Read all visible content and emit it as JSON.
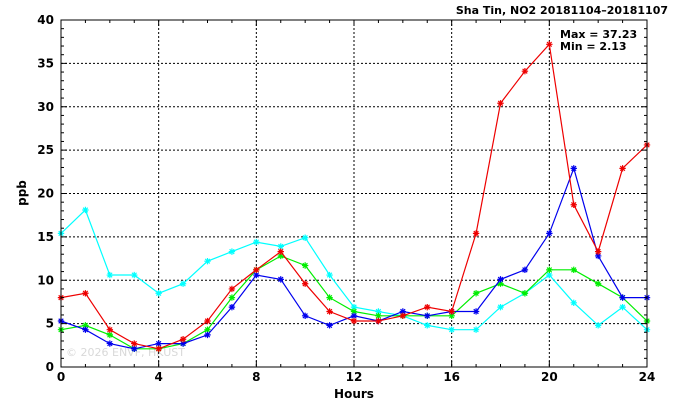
{
  "chart_data": {
    "type": "line",
    "title": "Sha Tin, NO2 20181104–20181107",
    "xlabel": "Hours",
    "ylabel": "ppb",
    "xlim": [
      0,
      24
    ],
    "ylim": [
      0,
      40
    ],
    "x_ticks": [
      0,
      4,
      8,
      12,
      16,
      20,
      24
    ],
    "y_ticks": [
      0,
      5,
      10,
      15,
      20,
      25,
      30,
      35,
      40
    ],
    "grid": true,
    "max_label": "Max = 37.23",
    "min_label": "Min =  2.13",
    "watermark": "© 2026 ENVF, HKUST",
    "x": [
      0,
      1,
      2,
      3,
      4,
      5,
      6,
      7,
      8,
      9,
      10,
      11,
      12,
      13,
      14,
      15,
      16,
      17,
      18,
      19,
      20,
      21,
      22,
      23,
      24
    ],
    "series": [
      {
        "color": "#00ffff",
        "values": [
          15.4,
          18.1,
          10.6,
          10.6,
          8.5,
          9.6,
          12.2,
          13.3,
          14.4,
          13.9,
          14.9,
          10.6,
          6.9,
          6.4,
          5.9,
          4.8,
          4.3,
          4.3,
          6.9,
          8.5,
          10.6,
          7.4,
          4.8,
          6.9,
          4.3
        ]
      },
      {
        "color": "#00ee00",
        "values": [
          4.3,
          4.8,
          3.7,
          2.1,
          2.1,
          2.7,
          4.3,
          8.0,
          11.2,
          12.8,
          11.7,
          8.0,
          6.4,
          5.9,
          5.9,
          5.9,
          5.9,
          8.5,
          9.6,
          8.5,
          11.2,
          11.2,
          9.6,
          8.0,
          5.3
        ]
      },
      {
        "color": "#0000ee",
        "values": [
          5.3,
          4.3,
          2.7,
          2.1,
          2.7,
          2.7,
          3.7,
          6.9,
          10.6,
          10.1,
          5.9,
          4.8,
          5.9,
          5.3,
          6.4,
          5.9,
          6.4,
          6.4,
          10.1,
          11.2,
          15.4,
          22.9,
          12.8,
          8.0,
          8.0
        ]
      },
      {
        "color": "#ee0000",
        "values": [
          8.0,
          8.5,
          4.3,
          2.7,
          2.1,
          3.2,
          5.3,
          9.0,
          11.2,
          13.3,
          9.6,
          6.4,
          5.3,
          5.3,
          5.9,
          6.9,
          6.4,
          15.4,
          30.4,
          34.1,
          37.2,
          18.7,
          13.3,
          22.9,
          25.6
        ]
      }
    ]
  }
}
